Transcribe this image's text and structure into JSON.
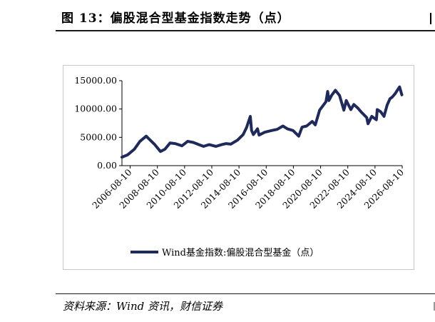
{
  "header": {
    "title": "图 13：偏股混合型基金指数走势（点）"
  },
  "footer": {
    "source": "资料来源：Wind 资讯，财信证券"
  },
  "chart_data": {
    "type": "line",
    "title": "",
    "xlabel": "",
    "ylabel": "",
    "xlim": [
      "2006-01-01",
      "2026-08-10"
    ],
    "ylim": [
      0,
      15000
    ],
    "y_ticks": [
      "15000.00",
      "10000.00",
      "5000.00",
      "0.00"
    ],
    "y_tick_values": [
      15000,
      10000,
      5000,
      0
    ],
    "x_ticks": [
      "2006-08-10",
      "2008-08-10",
      "2010-08-10",
      "2012-08-10",
      "2014-08-10",
      "2016-08-10",
      "2018-08-10",
      "2020-08-10",
      "2022-08-10",
      "2024-08-10",
      "2026-08-10"
    ],
    "grid": false,
    "legend_position": "bottom",
    "series": [
      {
        "name": "Wind基金指数:偏股混合型基金（点）",
        "color": "#1f2a5c",
        "x": [
          "2006-01-01",
          "2006-06-01",
          "2006-12-01",
          "2007-05-01",
          "2007-10-15",
          "2008-02-01",
          "2008-06-01",
          "2008-11-01",
          "2009-03-01",
          "2009-07-15",
          "2009-12-01",
          "2010-06-01",
          "2010-11-01",
          "2011-04-01",
          "2011-09-01",
          "2012-01-01",
          "2012-06-01",
          "2012-12-01",
          "2013-05-01",
          "2013-09-01",
          "2014-01-01",
          "2014-07-01",
          "2014-12-01",
          "2015-03-01",
          "2015-06-10",
          "2015-07-15",
          "2015-09-01",
          "2015-12-20",
          "2016-02-01",
          "2016-07-01",
          "2017-01-01",
          "2017-06-01",
          "2017-11-01",
          "2018-03-01",
          "2018-08-01",
          "2018-12-31",
          "2019-04-01",
          "2019-08-01",
          "2019-12-31",
          "2020-03-20",
          "2020-07-15",
          "2020-12-31",
          "2021-02-15",
          "2021-03-20",
          "2021-06-01",
          "2021-09-10",
          "2021-12-31",
          "2022-04-26",
          "2022-07-01",
          "2022-10-31",
          "2023-01-20",
          "2023-05-01",
          "2023-08-01",
          "2023-12-31",
          "2024-02-05",
          "2024-05-15",
          "2024-09-15",
          "2024-10-08",
          "2025-01-10",
          "2025-04-08",
          "2025-07-01",
          "2025-09-15",
          "2025-11-15",
          "2026-02-01",
          "2026-06-01",
          "2026-08-01"
        ],
        "values": [
          1500,
          1900,
          2900,
          4300,
          5200,
          4500,
          3700,
          2500,
          2900,
          4000,
          3900,
          3500,
          4300,
          4100,
          3700,
          3400,
          3700,
          3400,
          3700,
          3900,
          3800,
          4500,
          5500,
          6700,
          8700,
          6200,
          5500,
          6500,
          5400,
          5900,
          6200,
          6400,
          7000,
          6500,
          6200,
          5200,
          6800,
          7000,
          7800,
          7200,
          9800,
          11300,
          13100,
          11500,
          12400,
          13300,
          12400,
          9800,
          11500,
          9900,
          10800,
          10200,
          9500,
          8500,
          7400,
          8700,
          8100,
          9900,
          9500,
          8700,
          10700,
          11800,
          12100,
          12700,
          13900,
          12500
        ]
      }
    ]
  }
}
